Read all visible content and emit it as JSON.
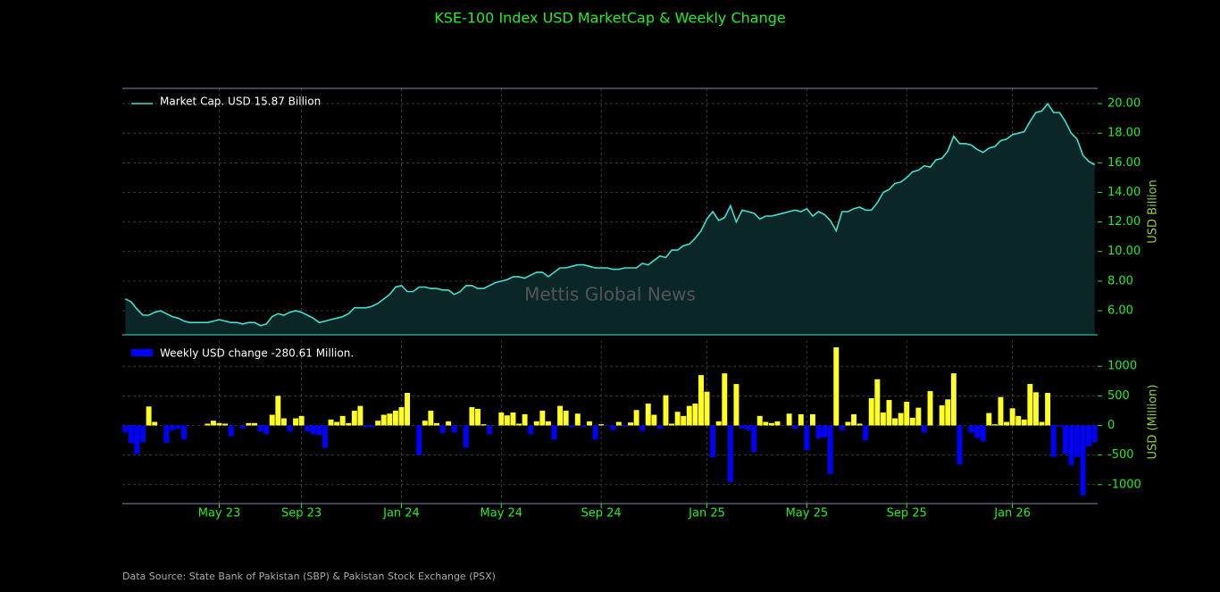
{
  "title": "KSE-100 Index USD MarketCap & Weekly Change",
  "source": "Data Source: State Bank of Pakistan (SBP) & Pakistan Stock Exchange (PSX)",
  "chart_data": [
    {
      "type": "area",
      "watermark": "Mettis Global News",
      "ylabel": "USD Billion",
      "ylim": [
        4.37,
        21.03
      ],
      "yticks": [
        {
          "value": 6,
          "label": "6.00"
        },
        {
          "value": 8,
          "label": "8.00"
        },
        {
          "value": 10,
          "label": "10.00"
        },
        {
          "value": 12,
          "label": "12.00"
        },
        {
          "value": 14,
          "label": "14.00"
        },
        {
          "value": 16,
          "label": "16.00"
        },
        {
          "value": 18,
          "label": "18.00"
        },
        {
          "value": 20,
          "label": "20.00"
        }
      ],
      "grid": true,
      "legend": "upper left",
      "series": [
        {
          "name": "Market Cap. USD 15.87 Billion",
          "color": "#40e0d0",
          "fill": "#0a2627",
          "values": [
            6.8,
            6.6,
            6.1,
            5.7,
            5.7,
            5.9,
            6.0,
            5.8,
            5.6,
            5.5,
            5.3,
            5.2,
            5.2,
            5.2,
            5.2,
            5.3,
            5.4,
            5.3,
            5.2,
            5.2,
            5.1,
            5.2,
            5.2,
            5.0,
            5.1,
            5.6,
            5.8,
            5.7,
            5.9,
            6.0,
            5.9,
            5.7,
            5.5,
            5.2,
            5.3,
            5.4,
            5.5,
            5.6,
            5.8,
            6.2,
            6.2,
            6.2,
            6.3,
            6.5,
            6.8,
            7.1,
            7.6,
            7.7,
            7.3,
            7.3,
            7.6,
            7.6,
            7.5,
            7.5,
            7.4,
            7.4,
            7.1,
            7.3,
            7.7,
            7.7,
            7.5,
            7.5,
            7.7,
            7.9,
            8.0,
            8.1,
            8.3,
            8.3,
            8.2,
            8.4,
            8.6,
            8.6,
            8.3,
            8.6,
            8.9,
            8.9,
            9.0,
            9.1,
            9.1,
            9.0,
            8.9,
            8.9,
            8.9,
            8.8,
            8.8,
            8.9,
            8.9,
            8.9,
            9.2,
            9.1,
            9.4,
            9.7,
            9.6,
            10.1,
            10.1,
            10.4,
            10.5,
            10.9,
            11.4,
            12.2,
            12.7,
            12.1,
            12.3,
            13.1,
            12.0,
            12.8,
            12.7,
            12.6,
            12.2,
            12.4,
            12.4,
            12.5,
            12.6,
            12.7,
            12.8,
            12.7,
            12.9,
            12.4,
            12.7,
            12.5,
            12.1,
            11.4,
            12.7,
            12.7,
            12.9,
            13.0,
            12.8,
            12.8,
            13.3,
            14.0,
            14.2,
            14.6,
            14.7,
            15.0,
            15.4,
            15.5,
            15.8,
            15.7,
            16.2,
            16.3,
            16.8,
            17.8,
            17.3,
            17.3,
            17.2,
            16.9,
            16.7,
            17.0,
            17.1,
            17.5,
            17.6,
            17.9,
            18.0,
            18.1,
            18.8,
            19.4,
            19.5,
            20.0,
            19.4,
            19.4,
            18.8,
            18.0,
            17.6,
            16.5,
            16.1,
            15.87
          ]
        }
      ]
    },
    {
      "type": "bar",
      "ylabel": "USD (Million)",
      "ylim": [
        -1320,
        1440
      ],
      "yticks": [
        -1000,
        -500,
        0,
        500,
        1000
      ],
      "grid": true,
      "legend": "upper left",
      "categories": [
        null,
        null,
        null,
        null,
        null,
        null,
        null,
        null,
        null,
        null,
        null,
        null,
        null,
        null,
        null,
        null,
        "May 23",
        null,
        null,
        null,
        null,
        null,
        null,
        null,
        null,
        null,
        null,
        null,
        null,
        null,
        "Sep 23",
        null,
        null,
        null,
        null,
        null,
        null,
        null,
        null,
        null,
        null,
        null,
        null,
        null,
        null,
        null,
        null,
        "Jan 24",
        null,
        null,
        null,
        null,
        null,
        null,
        null,
        null,
        null,
        null,
        null,
        null,
        null,
        null,
        null,
        null,
        "May 24",
        null,
        null,
        null,
        null,
        null,
        null,
        null,
        null,
        null,
        null,
        null,
        null,
        null,
        null,
        null,
        null,
        "Sep 24",
        null,
        null,
        null,
        null,
        null,
        null,
        null,
        null,
        null,
        null,
        null,
        null,
        null,
        null,
        null,
        null,
        null,
        "Jan 25",
        null,
        null,
        null,
        null,
        null,
        null,
        null,
        null,
        null,
        null,
        null,
        null,
        null,
        null,
        null,
        null,
        "May 25",
        null,
        null,
        null,
        null,
        null,
        null,
        null,
        null,
        null,
        null,
        null,
        null,
        null,
        null,
        null,
        null,
        "Sep 25",
        null,
        null,
        null,
        null,
        null,
        null,
        null,
        null,
        null,
        null,
        null,
        null,
        null,
        null,
        null,
        null,
        null,
        "Jan 26",
        null,
        null,
        null,
        null,
        null,
        null,
        null,
        null,
        null,
        null,
        null,
        null,
        null,
        null
      ],
      "series": [
        {
          "name": "Weekly USD change -280.61 Million.",
          "color": "#ffff22",
          "negative_color": "#0000ff",
          "values": [
            -120,
            -300,
            -480,
            -280,
            320,
            60,
            0,
            -300,
            -80,
            -60,
            -240,
            0,
            0,
            0,
            30,
            80,
            40,
            30,
            -180,
            0,
            -50,
            40,
            40,
            -100,
            -150,
            180,
            500,
            120,
            -100,
            120,
            160,
            -100,
            -150,
            -160,
            -380,
            100,
            60,
            160,
            40,
            250,
            330,
            -30,
            -30,
            80,
            180,
            200,
            250,
            310,
            550,
            0,
            -500,
            80,
            250,
            40,
            -130,
            70,
            -120,
            -10,
            -370,
            310,
            280,
            20,
            -150,
            0,
            220,
            170,
            220,
            30,
            190,
            -150,
            70,
            250,
            70,
            -240,
            330,
            250,
            -30,
            200,
            -30,
            70,
            -240,
            20,
            -10,
            -80,
            60,
            -20,
            50,
            260,
            -90,
            370,
            180,
            -60,
            510,
            30,
            230,
            160,
            330,
            370,
            850,
            570,
            -540,
            70,
            880,
            -960,
            700,
            -50,
            -80,
            -450,
            160,
            60,
            40,
            70,
            0,
            200,
            -60,
            190,
            -420,
            190,
            -220,
            -200,
            -820,
            1320,
            -80,
            60,
            190,
            30,
            -250,
            460,
            780,
            220,
            430,
            120,
            210,
            400,
            130,
            300,
            -120,
            580,
            0,
            340,
            440,
            880,
            -660,
            0,
            -120,
            -210,
            -270,
            210,
            20,
            480,
            60,
            290,
            160,
            100,
            700,
            560,
            60,
            550,
            -530,
            -20,
            -480,
            -670,
            -530,
            -1180,
            -350,
            -280.61
          ]
        }
      ]
    }
  ]
}
